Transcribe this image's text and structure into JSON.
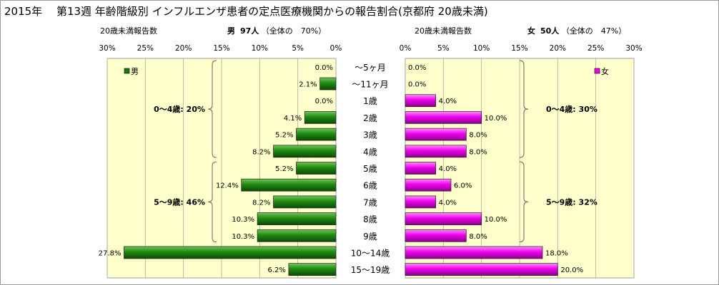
{
  "title": "2015年　 第13週 年齢階級別 インフルエンザ患者の定点医療機関からの報告割合(京都府 20歳未満)",
  "left_header": {
    "label": "20歳未満報告数",
    "sex": "男",
    "count": "97人",
    "share": "（全体の　70%）"
  },
  "right_header": {
    "label": "20歳未満報告数",
    "sex": "女",
    "count": "50人",
    "share": "（全体の　47%）"
  },
  "colors": {
    "male": "#1e7a10",
    "female": "#ee00ee",
    "plot_bg": "#ffffcc",
    "grid": "#aaaaaa"
  },
  "chart_data": [
    {
      "type": "bar",
      "orientation": "horizontal",
      "direction": "right-to-left",
      "categories": [
        "～5ヶ月",
        "～11ヶ月",
        "1歳",
        "2歳",
        "3歳",
        "4歳",
        "5歳",
        "6歳",
        "7歳",
        "8歳",
        "9歳",
        "10～14歳",
        "15～19歳"
      ],
      "series": [
        {
          "name": "男",
          "values": [
            0.0,
            2.1,
            0.0,
            4.1,
            5.2,
            8.2,
            5.2,
            12.4,
            8.2,
            10.3,
            10.3,
            27.8,
            6.2
          ]
        }
      ],
      "data_labels": [
        "0.0%",
        "2.1%",
        "0.0%",
        "4.1%",
        "5.2%",
        "8.2%",
        "5.2%",
        "12.4%",
        "8.2%",
        "10.3%",
        "10.3%",
        "27.8%",
        "6.2%"
      ],
      "xlim": [
        0,
        30
      ],
      "ticks": [
        30,
        25,
        20,
        15,
        10,
        5,
        0
      ],
      "tick_labels": [
        "30%",
        "25%",
        "20%",
        "15%",
        "10%",
        "5%",
        "0%"
      ],
      "grid": true,
      "legend": "top-left",
      "annotations": [
        {
          "text": "0～4歳: 20%",
          "from": 0,
          "to": 5
        },
        {
          "text": "5～9歳: 46%",
          "from": 6,
          "to": 10
        }
      ]
    },
    {
      "type": "bar",
      "orientation": "horizontal",
      "direction": "left-to-right",
      "categories": [
        "～5ヶ月",
        "～11ヶ月",
        "1歳",
        "2歳",
        "3歳",
        "4歳",
        "5歳",
        "6歳",
        "7歳",
        "8歳",
        "9歳",
        "10～14歳",
        "15～19歳"
      ],
      "series": [
        {
          "name": "女",
          "values": [
            0.0,
            0.0,
            4.0,
            10.0,
            8.0,
            8.0,
            4.0,
            6.0,
            4.0,
            10.0,
            8.0,
            18.0,
            20.0
          ]
        }
      ],
      "data_labels": [
        "0.0%",
        "0.0%",
        "4.0%",
        "10.0%",
        "8.0%",
        "8.0%",
        "4.0%",
        "6.0%",
        "4.0%",
        "10.0%",
        "8.0%",
        "18.0%",
        "20.0%"
      ],
      "xlim": [
        0,
        30
      ],
      "ticks": [
        0,
        5,
        10,
        15,
        20,
        25,
        30
      ],
      "tick_labels": [
        "0%",
        "5%",
        "10%",
        "15%",
        "20%",
        "25%",
        "30%"
      ],
      "grid": true,
      "legend": "top-right",
      "annotations": [
        {
          "text": "0～4歳: 30%",
          "from": 0,
          "to": 5
        },
        {
          "text": "5～9歳: 32%",
          "from": 6,
          "to": 10
        }
      ]
    }
  ]
}
